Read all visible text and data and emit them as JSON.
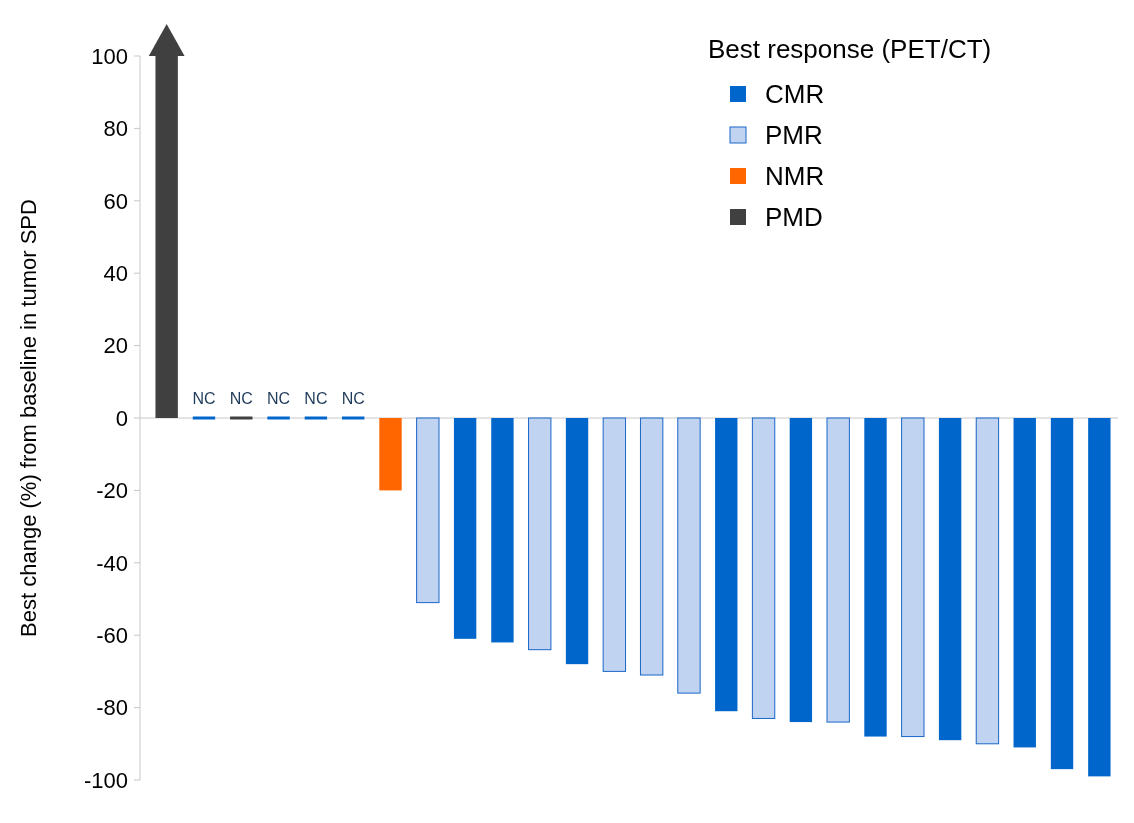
{
  "chart_data": {
    "type": "bar",
    "ylabel": "Best change (%) from baseline in tumor SPD",
    "legend_title": "Best response (PET/CT)",
    "legend": "top right",
    "grid": false,
    "categories": [
      null,
      null,
      null,
      null,
      null,
      null,
      null,
      null,
      null,
      null,
      null,
      null,
      null,
      null,
      null,
      null,
      null,
      null,
      null,
      null,
      null,
      null,
      null,
      null,
      null,
      null
    ],
    "series": [
      {
        "name": "CMR",
        "color": "#0066cc",
        "values": [
          null,
          0,
          null,
          0,
          0,
          0,
          null,
          null,
          -61,
          -62,
          null,
          -68,
          null,
          null,
          null,
          -81,
          null,
          -84,
          null,
          -88,
          null,
          -89,
          null,
          -91,
          -97,
          -99
        ]
      },
      {
        "name": "PMR",
        "color": "#c0d4f2",
        "values": [
          null,
          null,
          null,
          null,
          null,
          null,
          null,
          -51,
          null,
          null,
          -64,
          null,
          -70,
          -71,
          -76,
          null,
          -83,
          null,
          -84,
          null,
          -88,
          null,
          -90,
          null,
          null,
          null
        ]
      },
      {
        "name": "NMR",
        "color": "#ff6600",
        "values": [
          null,
          null,
          null,
          null,
          null,
          null,
          -20,
          null,
          null,
          null,
          null,
          null,
          null,
          null,
          null,
          null,
          null,
          null,
          null,
          null,
          null,
          null,
          null,
          null,
          null,
          null
        ]
      },
      {
        "name": "PMD",
        "color": "#404040",
        "values": [
          100,
          null,
          0,
          null,
          null,
          null,
          null,
          null,
          null,
          null,
          null,
          null,
          null,
          null,
          null,
          null,
          null,
          null,
          null,
          null,
          null,
          null,
          null,
          null,
          null,
          null
        ]
      }
    ],
    "value_labels": [
      null,
      "NC",
      "NC",
      "NC",
      "NC",
      "NC",
      null,
      null,
      null,
      null,
      null,
      null,
      null,
      null,
      null,
      null,
      null,
      null,
      null,
      null,
      null,
      null,
      null,
      null,
      null,
      null
    ],
    "ref_lines": [
      {
        "axis": "y",
        "value": 0,
        "color": "#c8c8c8"
      }
    ],
    "ylim": [
      -100,
      100
    ],
    "yticks": [
      -100,
      -80,
      -60,
      -40,
      -20,
      0,
      20,
      40,
      60,
      80,
      100
    ]
  }
}
